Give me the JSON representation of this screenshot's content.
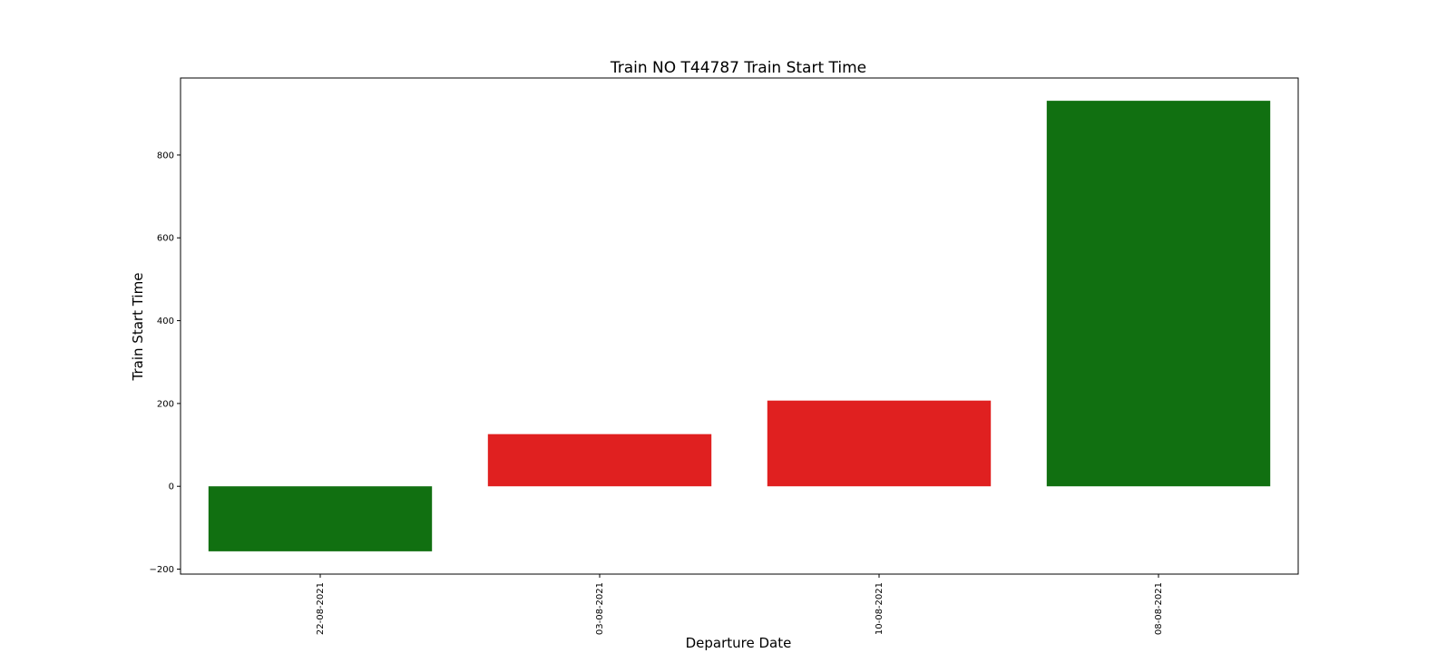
{
  "chart_data": {
    "type": "bar",
    "title": "Train NO T44787 Train Start Time",
    "xlabel": "Departure Date",
    "ylabel": "Train Start Time",
    "categories": [
      "22-08-2021",
      "03-08-2021",
      "10-08-2021",
      "08-08-2021"
    ],
    "values": [
      -157,
      126,
      207,
      931
    ],
    "bar_colors": [
      "#117011",
      "#e02020",
      "#e02020",
      "#117011"
    ],
    "ylim": [
      -212,
      986
    ],
    "yticks": [
      -200,
      0,
      200,
      400,
      600,
      800
    ],
    "ytick_labels": [
      "−200",
      "0",
      "200",
      "400",
      "600",
      "800"
    ],
    "grid": false,
    "legend": "none"
  }
}
